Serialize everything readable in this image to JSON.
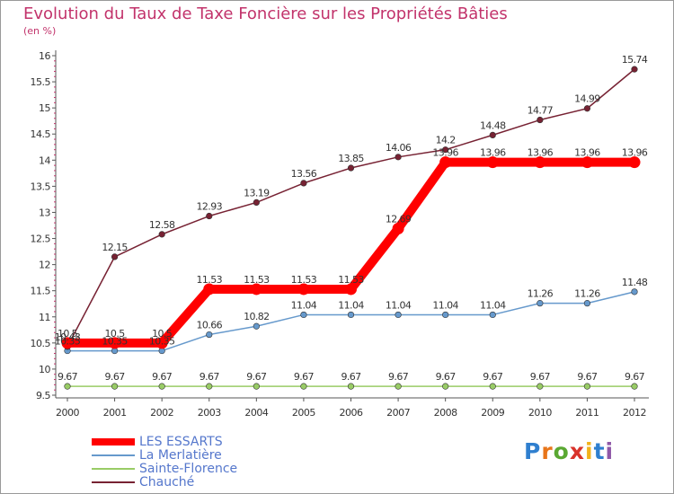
{
  "chart_data": {
    "type": "line",
    "title": "Evolution du Taux de Taxe Foncière sur les Propriétés Bâties",
    "ylabel": "(en %)",
    "xlabel": "",
    "x": [
      "2000",
      "2001",
      "2002",
      "2003",
      "2004",
      "2005",
      "2006",
      "2007",
      "2008",
      "2009",
      "2010",
      "2011",
      "2012"
    ],
    "ylim": [
      9.5,
      16
    ],
    "yticks": [
      "9.5",
      "10",
      "10.5",
      "11",
      "11.5",
      "12",
      "12.5",
      "13",
      "13.5",
      "14",
      "14.5",
      "15",
      "15.5",
      "16"
    ],
    "grid": false,
    "legend": "bottom-left",
    "series": [
      {
        "name": "LES ESSARTS",
        "color": "#ff0000",
        "values": [
          10.5,
          10.5,
          10.5,
          11.53,
          11.53,
          11.53,
          11.53,
          12.69,
          13.96,
          13.96,
          13.96,
          13.96,
          13.96
        ],
        "labels": [
          "10.5",
          "10.5",
          "10.5",
          "11.53",
          "11.53",
          "11.53",
          "11.53",
          "12.69",
          "13.96",
          "13.96",
          "13.96",
          "13.96",
          "13.96"
        ]
      },
      {
        "name": "La Merlatière",
        "color": "#6699cc",
        "values": [
          10.35,
          10.35,
          10.35,
          10.66,
          10.82,
          11.04,
          11.04,
          11.04,
          11.04,
          11.04,
          11.26,
          11.26,
          11.48
        ],
        "labels": [
          "10.35",
          "10.35",
          "10.35",
          "10.66",
          "10.82",
          "11.04",
          "11.04",
          "11.04",
          "11.04",
          "11.04",
          "11.26",
          "11.26",
          "11.48"
        ]
      },
      {
        "name": "Sainte-Florence",
        "color": "#99cc66",
        "values": [
          9.67,
          9.67,
          9.67,
          9.67,
          9.67,
          9.67,
          9.67,
          9.67,
          9.67,
          9.67,
          9.67,
          9.67,
          9.67
        ],
        "labels": [
          "9.67",
          "9.67",
          "9.67",
          "9.67",
          "9.67",
          "9.67",
          "9.67",
          "9.67",
          "9.67",
          "9.67",
          "9.67",
          "9.67",
          "9.67"
        ]
      },
      {
        "name": "Chauché",
        "color": "#772233",
        "values": [
          10.43,
          12.15,
          12.58,
          12.93,
          13.19,
          13.56,
          13.85,
          14.06,
          14.2,
          14.48,
          14.77,
          14.99,
          15.74
        ],
        "labels": [
          "10.43",
          "12.15",
          "12.58",
          "12.93",
          "13.19",
          "13.56",
          "13.85",
          "14.06",
          "14.2",
          "14.48",
          "14.77",
          "14.99",
          "15.74"
        ]
      }
    ]
  },
  "branding": {
    "logo_letters": [
      "P",
      "r",
      "o",
      "x",
      "i",
      "t",
      "i"
    ],
    "logo_colors": [
      "#2f7fcf",
      "#e8751a",
      "#5aa832",
      "#d9332b",
      "#f2b21c",
      "#2f7fcf",
      "#8f58a8"
    ]
  }
}
